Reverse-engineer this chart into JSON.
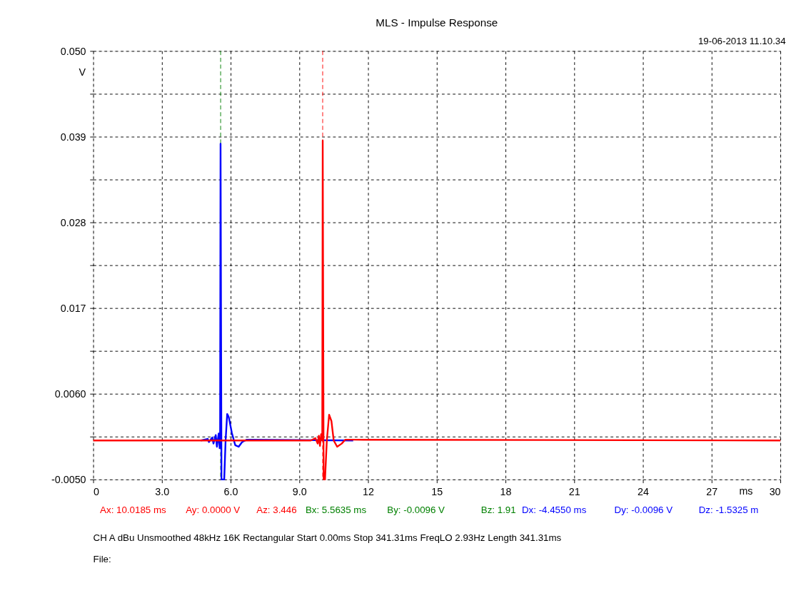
{
  "chart_data": {
    "type": "line",
    "title": "MLS - Impulse Response",
    "xlabel": "ms",
    "ylabel": "V",
    "xlim": [
      0,
      30
    ],
    "ylim": [
      -0.005,
      0.05
    ],
    "xticks": [
      0,
      {
        "value": 3,
        "label": "3.0"
      },
      {
        "value": 6,
        "label": "6.0"
      },
      {
        "value": 9,
        "label": "9.0"
      },
      12,
      15,
      18,
      21,
      24,
      27,
      30
    ],
    "yticks": [
      {
        "value": -0.005,
        "label": "-0.0050"
      },
      {
        "value": 0.0005,
        "label": null
      },
      {
        "value": 0.006,
        "label": "0.0060"
      },
      {
        "value": 0.0115,
        "label": null
      },
      0.017,
      {
        "value": 0.0225,
        "label": null
      },
      0.028,
      {
        "value": 0.0335,
        "label": null
      },
      0.039,
      {
        "value": 0.0445,
        "label": null
      },
      {
        "value": 0.05,
        "label": "0.050"
      }
    ],
    "grid": true,
    "line_style": "solid",
    "marker": "none",
    "series": [
      {
        "color": "#0000ff",
        "x": [
          4.7,
          5.0,
          5.05,
          5.2,
          5.25,
          5.35,
          5.4,
          5.48,
          5.52,
          5.54,
          5.56,
          5.6,
          5.72,
          5.78,
          5.85,
          5.92,
          6.05,
          6.2,
          6.35,
          6.5,
          6.7,
          6.9,
          11.35
        ],
        "values": [
          0,
          0.0002,
          -0.0002,
          0.0004,
          -0.0004,
          0.0007,
          -0.0008,
          0.0009,
          -0.001,
          0,
          0.0381,
          -0.005,
          -0.005,
          0,
          0.0034,
          0.003,
          0.001,
          -0.0006,
          -0.0008,
          -0.0002,
          0.0001,
          0.0001,
          0
        ]
      },
      {
        "color": "#ff0000",
        "x": [
          0,
          9.5,
          9.7,
          9.8,
          9.85,
          9.9,
          9.95,
          10.0,
          10.02,
          10.06,
          10.12,
          10.2,
          10.3,
          10.4,
          10.5,
          10.65,
          10.85,
          11.0,
          11.3,
          30
        ],
        "values": [
          0,
          0,
          0.0003,
          -0.0004,
          0.0006,
          -0.0007,
          0.0008,
          0,
          0.0385,
          -0.005,
          -0.005,
          0,
          0.0033,
          0.0025,
          0,
          -0.0008,
          -0.0004,
          0.0001,
          0.0001,
          0
        ]
      }
    ],
    "ref_lines": [
      {
        "axis": "x",
        "value": 10.0185,
        "color": "#ff0000",
        "line_style": "dashed"
      },
      {
        "axis": "x",
        "value": 5.5635,
        "color": "#008000",
        "line_style": "dashed"
      }
    ],
    "annotations": [
      "19-06-2013 11.10.34",
      "Ax: 10.0185 ms",
      "Ay: 0.0000 V",
      "Az: 3.446",
      "Bx: 5.5635 ms",
      "By: -0.0096 V",
      "Bz: 1.91",
      "Dx: -4.4550 ms",
      "Dy: -0.0096 V",
      "Dz: -1.5325 m",
      "CH A   dBu   Unsmoothed   48kHz   16K   Rectangular   Start 0.00ms    Stop 341.31ms    FreqLO 2.93Hz    Length 341.31ms",
      "File:"
    ]
  }
}
